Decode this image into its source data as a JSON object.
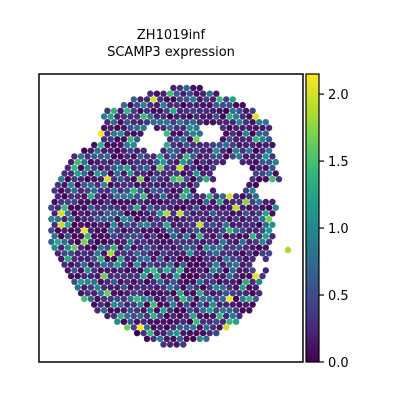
{
  "chart_data": {
    "type": "scatter",
    "subtype": "spatial-hexagon-embedding",
    "title_line1": "ZH1019inf",
    "title_line2": "SCAMP3 expression",
    "xlabel": "",
    "ylabel": "",
    "grid": false,
    "colormap": "viridis",
    "colorbar": {
      "range": [
        0.0,
        2.15
      ],
      "ticks": [
        0.0,
        0.5,
        1.0,
        1.5,
        2.0
      ],
      "tick_labels": [
        "0.0",
        "0.5",
        "1.0",
        "1.5",
        "2.0"
      ],
      "placement": "right"
    },
    "value_distribution": {
      "note": "most spots near 0.0-0.6, a minority ~1.0-1.5, a few outliers >1.8",
      "low": 0.0,
      "high": 2.15
    }
  },
  "colors": {
    "viridis_stops": [
      "#440154",
      "#482878",
      "#3e4989",
      "#31688e",
      "#26828e",
      "#1f9e89",
      "#35b779",
      "#6ece58",
      "#b5de2b",
      "#fde725"
    ]
  }
}
